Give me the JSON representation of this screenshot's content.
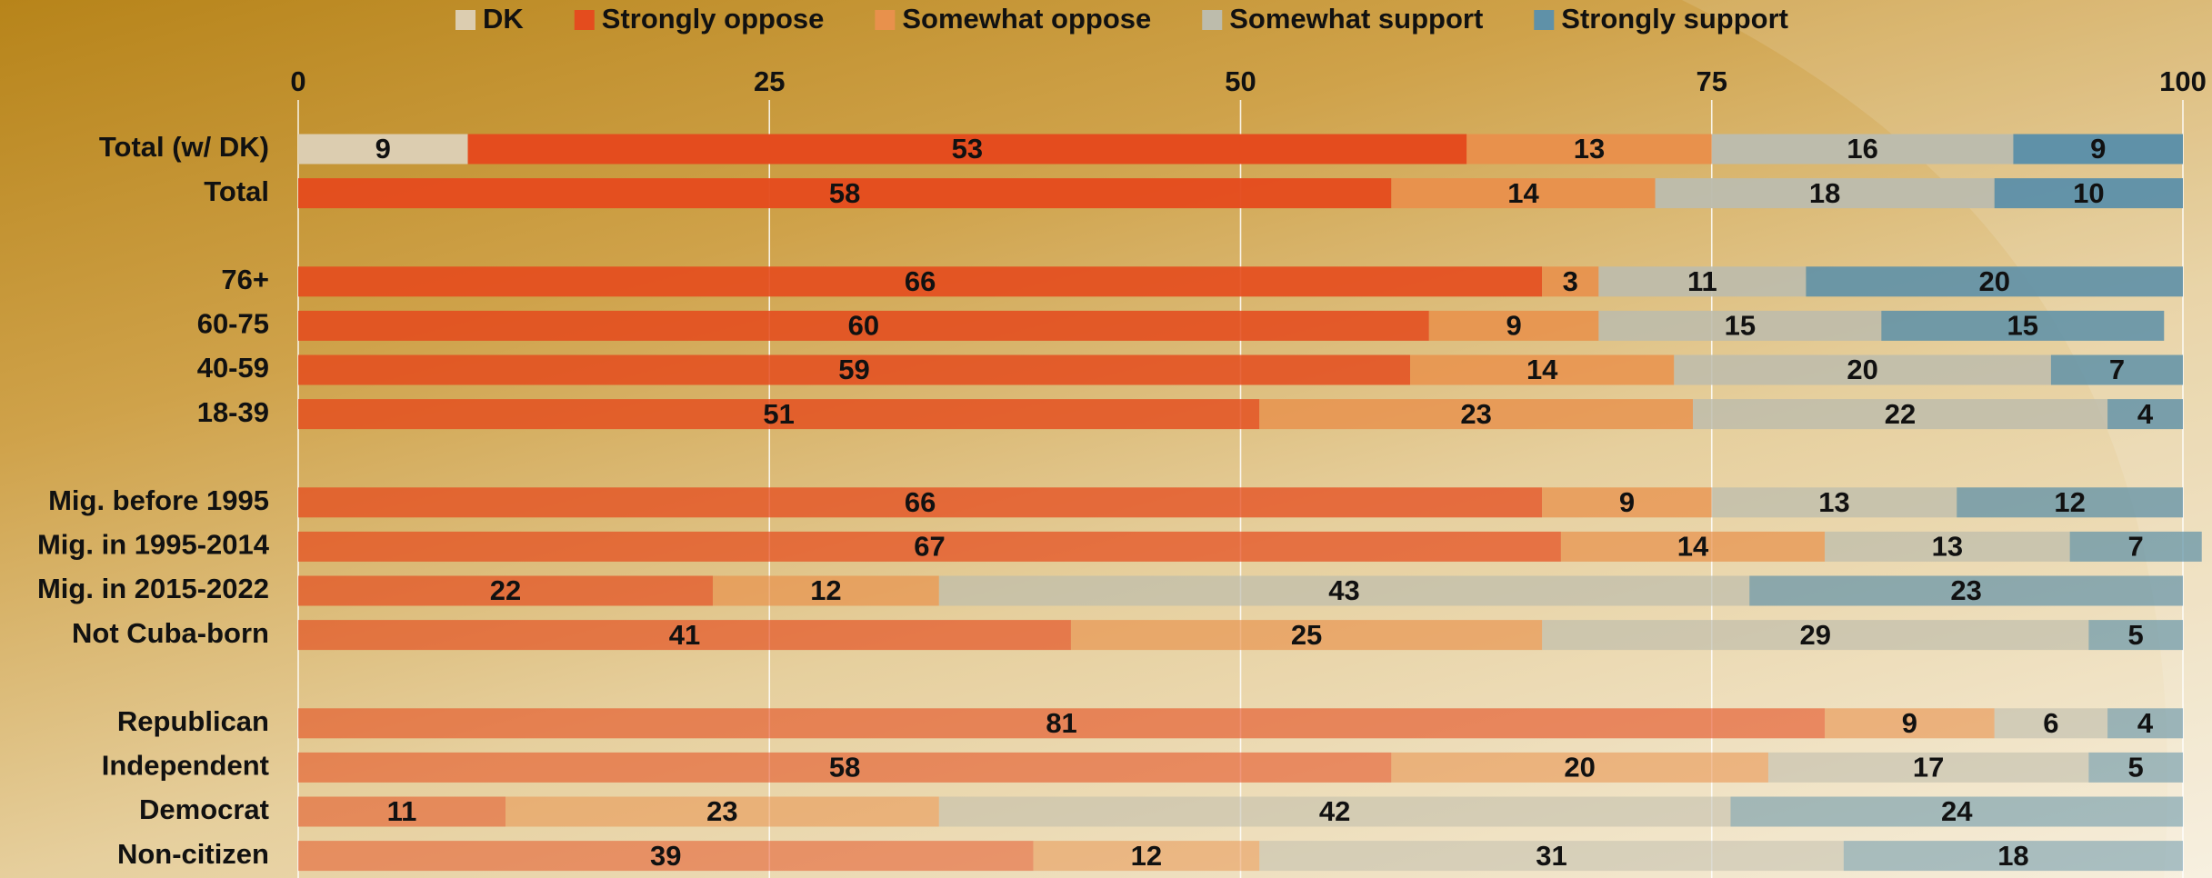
{
  "chart_data": {
    "type": "stacked_barh",
    "categories": [
      "Total (w/ DK)",
      "Total",
      null,
      "76+",
      "60-75",
      "40-59",
      "18-39",
      null,
      "Mig. before 1995",
      "Mig. in 1995-2014",
      "Mig. in 2015-2022",
      "Not Cuba-born",
      null,
      "Republican",
      "Independent",
      "Democrat",
      "Non-citizen"
    ],
    "series": [
      {
        "name": "DK",
        "color": "#dccdb0",
        "values": [
          9,
          null,
          null,
          null,
          null,
          null,
          null,
          null,
          null,
          null,
          null,
          null,
          null,
          null,
          null,
          null,
          null
        ]
      },
      {
        "name": "Strongly oppose",
        "color": "#e44c1e",
        "values": [
          53,
          58,
          null,
          66,
          60,
          59,
          51,
          null,
          66,
          67,
          22,
          41,
          null,
          81,
          58,
          11,
          39
        ]
      },
      {
        "name": "Somewhat oppose",
        "color": "#e8914c",
        "values": [
          13,
          14,
          null,
          3,
          9,
          14,
          23,
          null,
          9,
          14,
          12,
          25,
          null,
          9,
          20,
          23,
          12
        ]
      },
      {
        "name": "Somewhat support",
        "color": "#bdbcac",
        "values": [
          16,
          18,
          null,
          11,
          15,
          20,
          22,
          null,
          13,
          13,
          43,
          29,
          null,
          6,
          17,
          42,
          31
        ]
      },
      {
        "name": "Strongly support",
        "color": "#5f91a8",
        "values": [
          9,
          10,
          null,
          20,
          15,
          7,
          4,
          null,
          12,
          7,
          23,
          5,
          null,
          4,
          5,
          24,
          18
        ]
      }
    ],
    "xlim": [
      0,
      100
    ],
    "xticks": [
      0,
      25,
      50,
      75,
      100
    ],
    "grid": true,
    "legend": "top"
  }
}
